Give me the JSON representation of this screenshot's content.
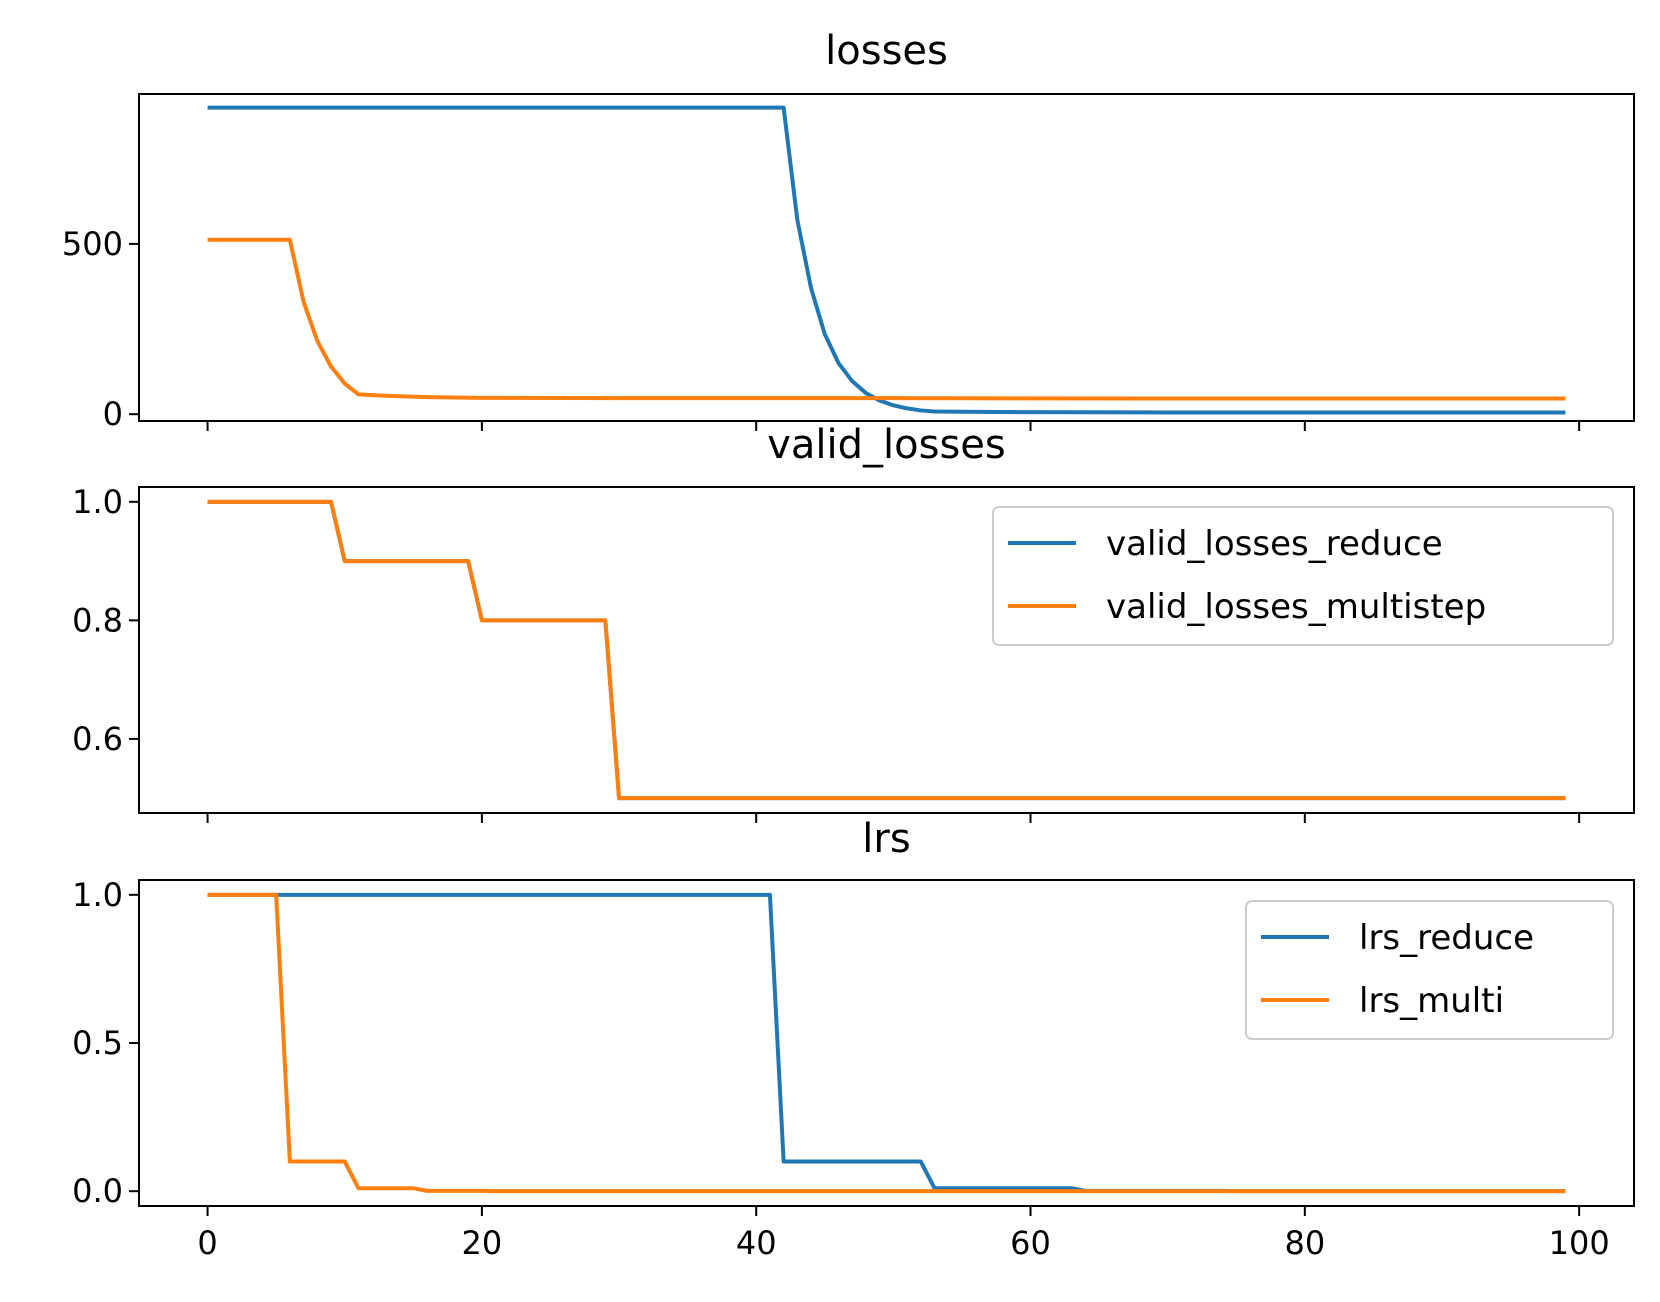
{
  "chart_data": [
    {
      "type": "line",
      "title": "losses",
      "xlabel": "",
      "ylabel": "",
      "xlim": [
        -5,
        104
      ],
      "ylim": [
        -20,
        940
      ],
      "yticks": [
        0,
        500
      ],
      "ytick_labels": [
        "0",
        "500"
      ],
      "xticks": [
        0,
        20,
        40,
        60,
        80,
        100
      ],
      "show_xtick_labels": false,
      "legend": null,
      "series": [
        {
          "color": "#1f77b4",
          "x": [
            0,
            42,
            43,
            44,
            45,
            46,
            47,
            48,
            49,
            50,
            51,
            52,
            53,
            55,
            60,
            70,
            80,
            90,
            99
          ],
          "y": [
            900,
            900,
            570,
            370,
            235,
            150,
            97,
            62,
            40,
            26,
            17,
            11,
            8,
            7,
            6,
            5,
            5,
            5,
            5
          ]
        },
        {
          "color": "#ff7f0e",
          "x": [
            0,
            6,
            7,
            8,
            9,
            10,
            11,
            13,
            16,
            20,
            30,
            50,
            70,
            99
          ],
          "y": [
            512,
            512,
            330,
            215,
            140,
            90,
            58,
            54,
            50,
            48,
            47,
            47,
            46,
            46
          ]
        }
      ]
    },
    {
      "type": "line",
      "title": "valid_losses",
      "xlabel": "",
      "ylabel": "",
      "xlim": [
        -5,
        104
      ],
      "ylim": [
        0.475,
        1.025
      ],
      "yticks": [
        0.6,
        0.8,
        1.0
      ],
      "ytick_labels": [
        "0.6",
        "0.8",
        "1.0"
      ],
      "xticks": [
        0,
        20,
        40,
        60,
        80,
        100
      ],
      "show_xtick_labels": false,
      "legend": "top-right",
      "series": [
        {
          "name": "valid_losses_reduce",
          "color": "#1f77b4",
          "x": [
            0,
            9,
            10,
            19,
            20,
            29,
            30,
            99
          ],
          "y": [
            1.0,
            1.0,
            0.9,
            0.9,
            0.8,
            0.8,
            0.5,
            0.5
          ]
        },
        {
          "name": "valid_losses_multistep",
          "color": "#ff7f0e",
          "x": [
            0,
            9,
            10,
            19,
            20,
            29,
            30,
            99
          ],
          "y": [
            1.0,
            1.0,
            0.9,
            0.9,
            0.8,
            0.8,
            0.5,
            0.5
          ]
        }
      ]
    },
    {
      "type": "line",
      "title": "lrs",
      "xlabel": "",
      "ylabel": "",
      "xlim": [
        -5,
        104
      ],
      "ylim": [
        -0.05,
        1.05
      ],
      "yticks": [
        0.0,
        0.5,
        1.0
      ],
      "ytick_labels": [
        "0.0",
        "0.5",
        "1.0"
      ],
      "xticks": [
        0,
        20,
        40,
        60,
        80,
        100
      ],
      "xtick_labels": [
        "0",
        "20",
        "40",
        "60",
        "80",
        "100"
      ],
      "show_xtick_labels": true,
      "legend": "top-right",
      "series": [
        {
          "name": "lrs_reduce",
          "color": "#1f77b4",
          "x": [
            0,
            41,
            42,
            52,
            53,
            63,
            64,
            74,
            75,
            99
          ],
          "y": [
            1.0,
            1.0,
            0.1,
            0.1,
            0.01,
            0.01,
            0.001,
            0.001,
            0.0001,
            0.0001
          ]
        },
        {
          "name": "lrs_multi",
          "color": "#ff7f0e",
          "x": [
            0,
            5,
            6,
            10,
            11,
            15,
            16,
            20,
            21,
            99
          ],
          "y": [
            1.0,
            1.0,
            0.1,
            0.1,
            0.01,
            0.01,
            0.001,
            0.001,
            0.0001,
            0.0001
          ]
        }
      ]
    }
  ]
}
